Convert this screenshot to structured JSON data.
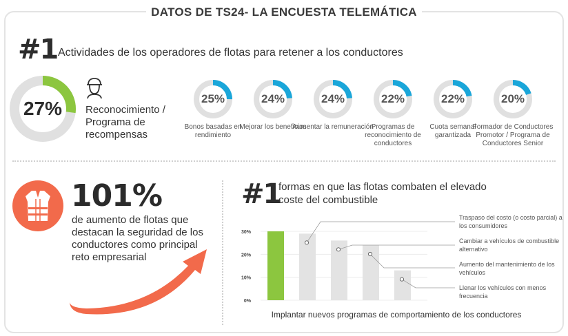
{
  "header": {
    "title": "DATOS DE TS24- LA ENCUESTA TELEMÁTICA"
  },
  "section1": {
    "rank": "#1",
    "title": "Actividades de los operadores de flotas para retener a los conductores",
    "main": {
      "value": 27,
      "label": "27%",
      "text": "Reconocimiento / Programa de recompensas",
      "color": "#8cc63f"
    },
    "items": [
      {
        "value": 25,
        "label": "25%",
        "text": "Bonos basadas en rendimiento"
      },
      {
        "value": 24,
        "label": "24%",
        "text": "Mejorar los beneficios"
      },
      {
        "value": 24,
        "label": "24%",
        "text": "Aumentar la remuneración"
      },
      {
        "value": 22,
        "label": "22%",
        "text": "Programas de reconocimiento de conductores"
      },
      {
        "value": 22,
        "label": "22%",
        "text": "Cuota semanal garantizada"
      },
      {
        "value": 20,
        "label": "20%",
        "text": "Formador de Conductores Promotor / Programa de Conductores Senior"
      }
    ],
    "accent_color": "#1aa6d9"
  },
  "section2": {
    "value": "101%",
    "text": "de aumento de flotas que destacan la seguridad de los conductores como principal reto empresarial",
    "color": "#f26a4b"
  },
  "section3": {
    "rank": "#1",
    "title": "formas en que las flotas combaten el elevado coste del combustible",
    "caption": "Implantar nuevos programas de comportamiento de los conductores"
  },
  "chart_data": {
    "type": "bar",
    "ylim": [
      0,
      30
    ],
    "yticks": [
      "0%",
      "10%",
      "20%",
      "30%"
    ],
    "ytick_values": [
      0,
      10,
      20,
      30
    ],
    "values": [
      30,
      29,
      26,
      24,
      13
    ],
    "categories": [
      "Implantar nuevos programas de comportamiento de los conductores",
      "Traspaso del costo (o costo parcial) a los consumidores",
      "Cambiar a vehículos de combustible alternativo",
      "Aumento del mantenimiento de los vehículos",
      "Llenar los vehículos con menos frecuencia"
    ],
    "highlight_color": "#8cc63f",
    "bar_color": "#e3e3e3",
    "grid": true
  }
}
